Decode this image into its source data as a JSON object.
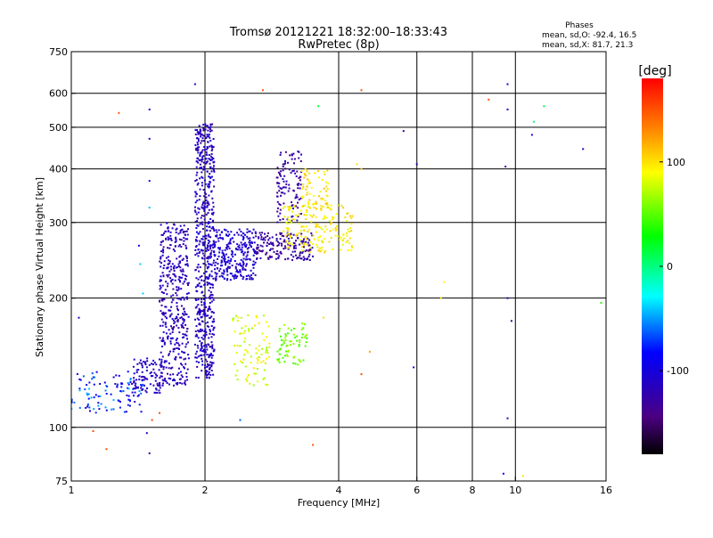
{
  "chart_data": {
    "type": "scatter",
    "title": "Tromsø 20121221 18:32:00–18:33:43",
    "subtitle": "RwPretec (8p)",
    "xlabel": "Frequency [MHz]",
    "ylabel": "Stationary phase Virtual Height [km]",
    "x_scale": "log",
    "y_scale": "log",
    "xlim": [
      1,
      16
    ],
    "ylim": [
      75,
      750
    ],
    "x_ticks": [
      1,
      2,
      4,
      6,
      8,
      10,
      16
    ],
    "y_ticks": [
      75,
      100,
      200,
      300,
      400,
      500,
      600,
      750
    ],
    "x_gridlines": [
      2,
      4,
      6,
      8,
      10
    ],
    "y_gridlines": [
      100,
      200,
      300,
      400,
      500,
      600
    ],
    "grid": true,
    "annotation": {
      "title": "Phases",
      "line_o": "mean, sd,O: -92.4, 16.5",
      "line_x": "mean, sd,X:  81.7, 21.3"
    },
    "colorbar": {
      "label": "[deg]",
      "range": [
        -180,
        180
      ],
      "ticks": [
        100,
        0,
        -100
      ],
      "colormap": "rainbow"
    },
    "clusters": [
      {
        "x_range": [
          1.0,
          1.45
        ],
        "y_range": [
          108,
          135
        ],
        "phase_range": [
          -120,
          -40
        ],
        "count": 110
      },
      {
        "x_range": [
          1.38,
          1.6
        ],
        "y_range": [
          120,
          145
        ],
        "phase_range": [
          -125,
          -95
        ],
        "count": 90
      },
      {
        "x_range": [
          1.58,
          1.84
        ],
        "y_range": [
          125,
          300
        ],
        "phase_range": [
          -130,
          -100
        ],
        "count": 420
      },
      {
        "x_range": [
          1.9,
          2.1
        ],
        "y_range": [
          130,
          510
        ],
        "phase_range": [
          -130,
          -95
        ],
        "count": 620
      },
      {
        "x_range": [
          2.1,
          2.6
        ],
        "y_range": [
          220,
          290
        ],
        "phase_range": [
          -120,
          -90
        ],
        "count": 260
      },
      {
        "x_range": [
          2.6,
          3.5
        ],
        "y_range": [
          245,
          285
        ],
        "phase_range": [
          -150,
          -110
        ],
        "count": 170
      },
      {
        "x_range": [
          2.9,
          3.3
        ],
        "y_range": [
          300,
          450
        ],
        "phase_range": [
          -145,
          -110
        ],
        "count": 110
      },
      {
        "x_range": [
          3.0,
          4.3
        ],
        "y_range": [
          255,
          330
        ],
        "phase_range": [
          80,
          110
        ],
        "count": 190
      },
      {
        "x_range": [
          3.3,
          3.8
        ],
        "y_range": [
          330,
          400
        ],
        "phase_range": [
          85,
          115
        ],
        "count": 60
      },
      {
        "x_range": [
          2.3,
          2.8
        ],
        "y_range": [
          125,
          185
        ],
        "phase_range": [
          65,
          100
        ],
        "count": 90
      },
      {
        "x_range": [
          2.9,
          3.4
        ],
        "y_range": [
          140,
          175
        ],
        "phase_range": [
          40,
          70
        ],
        "count": 70
      }
    ],
    "outliers": [
      {
        "x": 1.9,
        "y": 630,
        "phase": -110
      },
      {
        "x": 2.7,
        "y": 610,
        "phase": 150
      },
      {
        "x": 4.5,
        "y": 610,
        "phase": 150
      },
      {
        "x": 1.28,
        "y": 540,
        "phase": 150
      },
      {
        "x": 1.5,
        "y": 550,
        "phase": -110
      },
      {
        "x": 1.5,
        "y": 470,
        "phase": -110
      },
      {
        "x": 3.6,
        "y": 560,
        "phase": 20
      },
      {
        "x": 5.6,
        "y": 490,
        "phase": -130
      },
      {
        "x": 6.0,
        "y": 410,
        "phase": -110
      },
      {
        "x": 4.4,
        "y": 410,
        "phase": 100
      },
      {
        "x": 8.7,
        "y": 580,
        "phase": 150
      },
      {
        "x": 9.6,
        "y": 630,
        "phase": -110
      },
      {
        "x": 9.6,
        "y": 550,
        "phase": -110
      },
      {
        "x": 9.5,
        "y": 405,
        "phase": -140
      },
      {
        "x": 11.0,
        "y": 515,
        "phase": 0
      },
      {
        "x": 11.6,
        "y": 560,
        "phase": 10
      },
      {
        "x": 10.9,
        "y": 480,
        "phase": -100
      },
      {
        "x": 14.2,
        "y": 445,
        "phase": -110
      },
      {
        "x": 1.5,
        "y": 375,
        "phase": -80
      },
      {
        "x": 1.5,
        "y": 325,
        "phase": -40
      },
      {
        "x": 1.42,
        "y": 265,
        "phase": -100
      },
      {
        "x": 1.43,
        "y": 240,
        "phase": -40
      },
      {
        "x": 1.45,
        "y": 205,
        "phase": -40
      },
      {
        "x": 1.04,
        "y": 180,
        "phase": -110
      },
      {
        "x": 1.12,
        "y": 98,
        "phase": 150
      },
      {
        "x": 1.2,
        "y": 89,
        "phase": 150
      },
      {
        "x": 1.48,
        "y": 97,
        "phase": -110
      },
      {
        "x": 1.52,
        "y": 104,
        "phase": 150
      },
      {
        "x": 1.5,
        "y": 87,
        "phase": -130
      },
      {
        "x": 1.58,
        "y": 108,
        "phase": 150
      },
      {
        "x": 6.9,
        "y": 218,
        "phase": 90
      },
      {
        "x": 6.8,
        "y": 200,
        "phase": 100
      },
      {
        "x": 5.9,
        "y": 138,
        "phase": -110
      },
      {
        "x": 4.5,
        "y": 133,
        "phase": 150
      },
      {
        "x": 4.7,
        "y": 150,
        "phase": 120
      },
      {
        "x": 9.6,
        "y": 200,
        "phase": -110
      },
      {
        "x": 9.8,
        "y": 177,
        "phase": -140
      },
      {
        "x": 15.6,
        "y": 195,
        "phase": 40
      },
      {
        "x": 9.6,
        "y": 105,
        "phase": -120
      },
      {
        "x": 3.5,
        "y": 91,
        "phase": 150
      },
      {
        "x": 9.4,
        "y": 78,
        "phase": -100
      },
      {
        "x": 10.4,
        "y": 77,
        "phase": 100
      },
      {
        "x": 2.4,
        "y": 104,
        "phase": -60
      },
      {
        "x": 3.7,
        "y": 180,
        "phase": 100
      },
      {
        "x": 4.5,
        "y": 400,
        "phase": 110
      }
    ]
  }
}
